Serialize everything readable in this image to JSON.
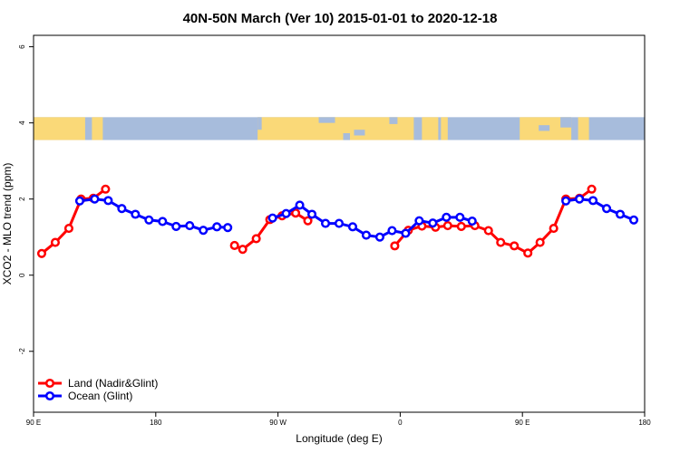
{
  "chart_data": {
    "type": "line",
    "title": "40N-50N March (Ver 10)   2015-01-01 to 2020-12-18",
    "xlabel": "Longitude (deg E)",
    "ylabel": "XCO2 - MLO trend (ppm)",
    "xlim": [
      90,
      540
    ],
    "ylim": [
      -3.6,
      6.3
    ],
    "x_ticks": [
      {
        "value": 90,
        "label": "90 E"
      },
      {
        "value": 180,
        "label": "180"
      },
      {
        "value": 270,
        "label": "90 W"
      },
      {
        "value": 360,
        "label": "0"
      },
      {
        "value": 450,
        "label": "90 E"
      },
      {
        "value": 540,
        "label": "180"
      }
    ],
    "y_ticks": [
      {
        "value": -2,
        "label": "-2"
      },
      {
        "value": 0,
        "label": "0"
      },
      {
        "value": 2,
        "label": "2"
      },
      {
        "value": 4,
        "label": "4"
      },
      {
        "value": 6,
        "label": "6"
      }
    ],
    "map_band": {
      "y_range": [
        3.55,
        4.15
      ],
      "land_color": "#fad978",
      "ocean_color": "#a7bcdc"
    },
    "legend": {
      "position": "bottom-left"
    },
    "series": [
      {
        "name": "Land (Nadir&Glint)",
        "color": "#ff0000",
        "segments": [
          [
            [
              96,
              0.57
            ],
            [
              106,
              0.86
            ],
            [
              116,
              1.23
            ],
            [
              125,
              2.0
            ],
            [
              134,
              2.02
            ],
            [
              143,
              2.26
            ]
          ],
          [
            [
              238,
              0.78
            ],
            [
              244,
              0.68
            ],
            [
              254,
              0.96
            ],
            [
              264,
              1.46
            ],
            [
              273,
              1.56
            ],
            [
              283,
              1.63
            ],
            [
              292,
              1.43
            ]
          ],
          [
            [
              356,
              0.77
            ],
            [
              366,
              1.18
            ],
            [
              376,
              1.29
            ],
            [
              386,
              1.26
            ],
            [
              395,
              1.3
            ],
            [
              405,
              1.28
            ],
            [
              415,
              1.3
            ],
            [
              425,
              1.17
            ],
            [
              434,
              0.86
            ],
            [
              444,
              0.77
            ],
            [
              454,
              0.58
            ],
            [
              463,
              0.86
            ],
            [
              473,
              1.23
            ],
            [
              482,
              2.0
            ],
            [
              492,
              2.02
            ],
            [
              501,
              2.26
            ]
          ]
        ]
      },
      {
        "name": "Ocean (Glint)",
        "color": "#0000ff",
        "segments": [
          [
            [
              124,
              1.95
            ],
            [
              135,
              2.0
            ],
            [
              145,
              1.96
            ],
            [
              155,
              1.75
            ],
            [
              165,
              1.6
            ],
            [
              175,
              1.45
            ],
            [
              185,
              1.41
            ],
            [
              195,
              1.28
            ],
            [
              205,
              1.3
            ],
            [
              215,
              1.18
            ],
            [
              225,
              1.27
            ],
            [
              233,
              1.25
            ]
          ],
          [
            [
              266,
              1.5
            ],
            [
              276,
              1.62
            ],
            [
              286,
              1.84
            ],
            [
              295,
              1.6
            ],
            [
              305,
              1.36
            ],
            [
              315,
              1.36
            ],
            [
              325,
              1.27
            ],
            [
              335,
              1.05
            ],
            [
              345,
              1.0
            ],
            [
              354,
              1.17
            ],
            [
              364,
              1.1
            ],
            [
              374,
              1.43
            ],
            [
              384,
              1.37
            ],
            [
              394,
              1.52
            ],
            [
              404,
              1.52
            ],
            [
              413,
              1.42
            ]
          ],
          [
            [
              482,
              1.95
            ],
            [
              492,
              2.0
            ],
            [
              502,
              1.96
            ],
            [
              512,
              1.75
            ],
            [
              522,
              1.6
            ],
            [
              532,
              1.45
            ]
          ]
        ]
      }
    ]
  }
}
